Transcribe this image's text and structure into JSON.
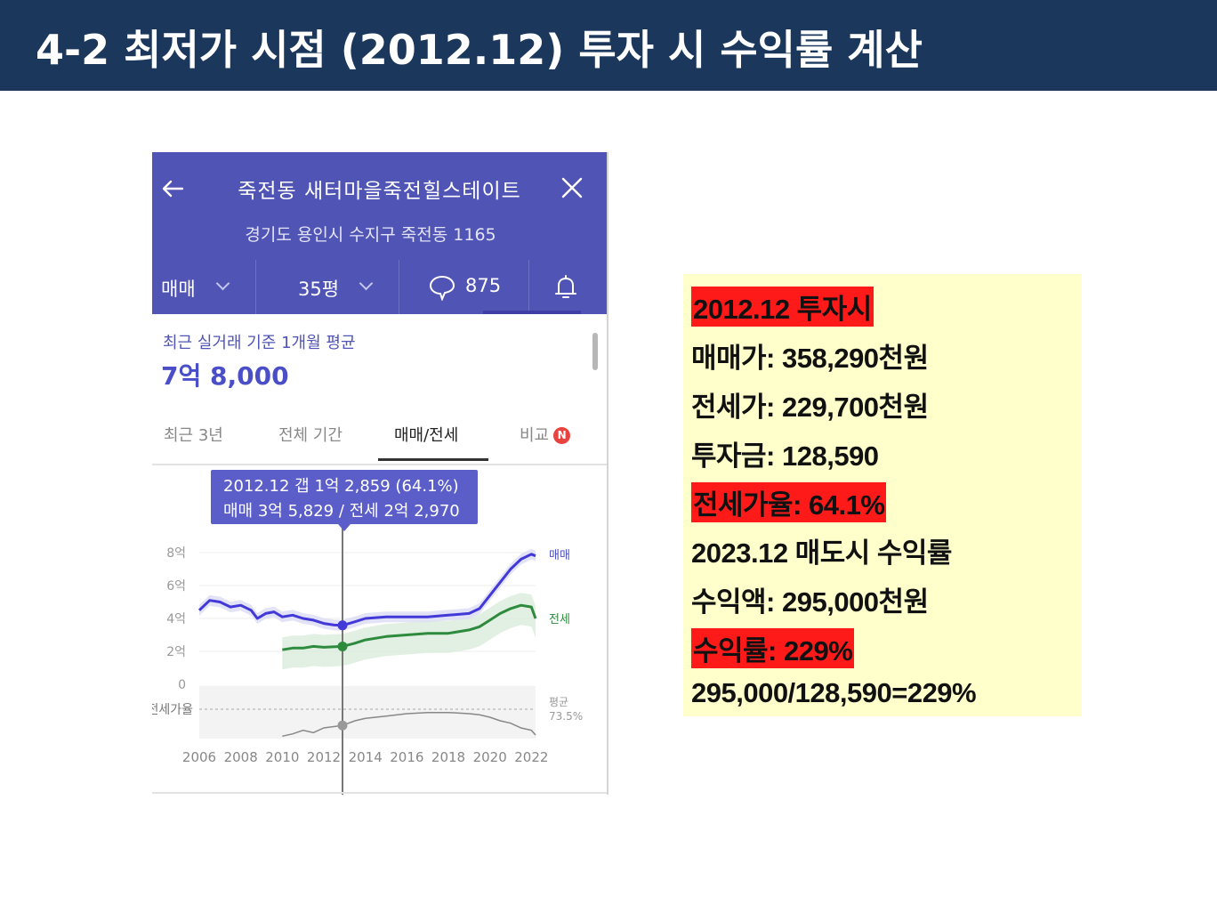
{
  "slide": {
    "title": "4-2 최저가 시점 (2012.12) 투자 시 수익률 계산"
  },
  "app": {
    "complex_name": "죽전동 새터마을죽전힐스테이트",
    "address": "경기도 용인시 수지구 죽전동 1165",
    "filters": {
      "deal_type": "매매",
      "size": "35평",
      "comment_count": "875"
    },
    "avg_label": "최근 실거래 기준 1개월 평균",
    "avg_value": "7억 8,000",
    "tabs": [
      {
        "label": "최근 3년"
      },
      {
        "label": "전체 기간"
      },
      {
        "label": "매매/전세"
      },
      {
        "label": "비교"
      }
    ],
    "new_badge": "N",
    "tooltip": {
      "line1": "2012.12  갭 1억 2,859 (64.1%)",
      "line2": "매매 3억 5,829 / 전세 2억 2,970"
    }
  },
  "chart_data": {
    "type": "line",
    "y_unit": "억",
    "yticks": [
      "8억",
      "6억",
      "4억",
      "2억",
      "0"
    ],
    "ylim": [
      0,
      8
    ],
    "xticks": [
      "2006",
      "2008",
      "2010",
      "2012",
      "2014",
      "2016",
      "2018",
      "2020",
      "2022"
    ],
    "series": [
      {
        "name": "매매",
        "color": "#4338d8",
        "points": [
          [
            2006.0,
            4.5
          ],
          [
            2006.5,
            5.1
          ],
          [
            2007.0,
            5.0
          ],
          [
            2007.5,
            4.7
          ],
          [
            2008.0,
            4.8
          ],
          [
            2008.5,
            4.5
          ],
          [
            2008.8,
            4.0
          ],
          [
            2009.2,
            4.3
          ],
          [
            2009.6,
            4.4
          ],
          [
            2010.0,
            4.1
          ],
          [
            2010.5,
            4.2
          ],
          [
            2011.0,
            4.0
          ],
          [
            2011.5,
            3.9
          ],
          [
            2012.0,
            3.7
          ],
          [
            2012.5,
            3.6
          ],
          [
            2012.9,
            3.58
          ],
          [
            2013.5,
            3.8
          ],
          [
            2014.0,
            4.0
          ],
          [
            2015.0,
            4.1
          ],
          [
            2016.0,
            4.1
          ],
          [
            2017.0,
            4.1
          ],
          [
            2018.0,
            4.2
          ],
          [
            2019.0,
            4.3
          ],
          [
            2019.5,
            4.6
          ],
          [
            2020.0,
            5.4
          ],
          [
            2020.5,
            6.2
          ],
          [
            2021.0,
            7.0
          ],
          [
            2021.5,
            7.6
          ],
          [
            2022.0,
            7.9
          ],
          [
            2022.2,
            7.8
          ]
        ]
      },
      {
        "name": "전세",
        "color": "#2e8b3e",
        "points": [
          [
            2010.0,
            2.1
          ],
          [
            2010.5,
            2.2
          ],
          [
            2011.0,
            2.2
          ],
          [
            2011.5,
            2.3
          ],
          [
            2012.0,
            2.25
          ],
          [
            2012.9,
            2.3
          ],
          [
            2013.5,
            2.5
          ],
          [
            2014.0,
            2.7
          ],
          [
            2015.0,
            2.9
          ],
          [
            2016.0,
            3.0
          ],
          [
            2017.0,
            3.1
          ],
          [
            2018.0,
            3.1
          ],
          [
            2019.0,
            3.3
          ],
          [
            2019.5,
            3.5
          ],
          [
            2020.0,
            3.9
          ],
          [
            2020.5,
            4.3
          ],
          [
            2021.0,
            4.6
          ],
          [
            2021.5,
            4.8
          ],
          [
            2022.0,
            4.7
          ],
          [
            2022.2,
            4.0
          ]
        ]
      },
      {
        "name": "전세가율",
        "color": "#888888",
        "points": [
          [
            2010.0,
            55
          ],
          [
            2010.5,
            57
          ],
          [
            2011.0,
            60
          ],
          [
            2011.5,
            58
          ],
          [
            2012.0,
            62
          ],
          [
            2012.9,
            64.1
          ],
          [
            2013.5,
            68
          ],
          [
            2014.0,
            70
          ],
          [
            2015.0,
            72
          ],
          [
            2016.0,
            74
          ],
          [
            2017.0,
            75
          ],
          [
            2018.0,
            75
          ],
          [
            2019.0,
            74
          ],
          [
            2019.5,
            73
          ],
          [
            2020.0,
            71
          ],
          [
            2020.5,
            68
          ],
          [
            2021.0,
            66
          ],
          [
            2021.5,
            62
          ],
          [
            2022.0,
            60
          ],
          [
            2022.2,
            56
          ]
        ]
      }
    ],
    "labels": {
      "sale": "매매",
      "jeonse": "전세",
      "ratio": "전세가율",
      "avg": "평균",
      "avg_value": "73.5%"
    },
    "highlight_x": 2012.9
  },
  "summary": {
    "lines": [
      {
        "text": "2012.12 투자시",
        "highlight": true
      },
      {
        "text": "매매가: 358,290천원",
        "highlight": false
      },
      {
        "text": "전세가: 229,700천원",
        "highlight": false
      },
      {
        "text": "투자금: 128,590",
        "highlight": false
      },
      {
        "text": "전세가율: 64.1%",
        "highlight": true
      },
      {
        "text": "2023.12 매도시 수익률",
        "highlight": false
      },
      {
        "text": "수익액: 295,000천원",
        "highlight": false
      },
      {
        "text": "수익률: 229%",
        "highlight": true
      },
      {
        "text": "295,000/128,590=229%",
        "highlight": false
      }
    ]
  }
}
